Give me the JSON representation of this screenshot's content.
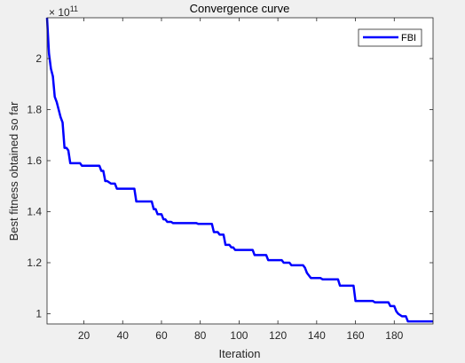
{
  "chart_data": {
    "type": "line",
    "title": "Convergence curve",
    "xlabel": "Iteration",
    "ylabel": "Best fitness obtained so far",
    "y_exponent_label": "× 10",
    "y_exponent": "11",
    "xlim": [
      1,
      200
    ],
    "ylim": [
      0.96,
      2.16
    ],
    "x_ticks": [
      20,
      40,
      60,
      80,
      100,
      120,
      140,
      160,
      180
    ],
    "y_ticks": [
      1,
      1.2,
      1.4,
      1.6,
      1.8,
      2
    ],
    "x_tick_labels": [
      "20",
      "40",
      "60",
      "80",
      "100",
      "120",
      "140",
      "160",
      "180"
    ],
    "y_tick_labels": [
      "1",
      "1.2",
      "1.4",
      "1.6",
      "1.8",
      "2"
    ],
    "grid": false,
    "legend_position": "top-right",
    "series": [
      {
        "name": "FBI",
        "color": "#0000ff",
        "points": [
          [
            1,
            2.16
          ],
          [
            2,
            2.02
          ],
          [
            3,
            1.96
          ],
          [
            4,
            1.93
          ],
          [
            5,
            1.85
          ],
          [
            6,
            1.83
          ],
          [
            7,
            1.8
          ],
          [
            8,
            1.77
          ],
          [
            9,
            1.75
          ],
          [
            10,
            1.65
          ],
          [
            11,
            1.65
          ],
          [
            12,
            1.64
          ],
          [
            13,
            1.59
          ],
          [
            18,
            1.59
          ],
          [
            19,
            1.58
          ],
          [
            28,
            1.58
          ],
          [
            29,
            1.56
          ],
          [
            30,
            1.56
          ],
          [
            31,
            1.52
          ],
          [
            32,
            1.52
          ],
          [
            34,
            1.51
          ],
          [
            36,
            1.51
          ],
          [
            37,
            1.49
          ],
          [
            46,
            1.49
          ],
          [
            47,
            1.44
          ],
          [
            55,
            1.44
          ],
          [
            56,
            1.41
          ],
          [
            57,
            1.41
          ],
          [
            58,
            1.39
          ],
          [
            60,
            1.39
          ],
          [
            61,
            1.37
          ],
          [
            62,
            1.37
          ],
          [
            63,
            1.36
          ],
          [
            65,
            1.36
          ],
          [
            66,
            1.355
          ],
          [
            78,
            1.355
          ],
          [
            79,
            1.352
          ],
          [
            86,
            1.352
          ],
          [
            87,
            1.32
          ],
          [
            89,
            1.32
          ],
          [
            90,
            1.31
          ],
          [
            92,
            1.31
          ],
          [
            93,
            1.27
          ],
          [
            95,
            1.27
          ],
          [
            96,
            1.26
          ],
          [
            97,
            1.26
          ],
          [
            98,
            1.25
          ],
          [
            107,
            1.25
          ],
          [
            108,
            1.23
          ],
          [
            114,
            1.23
          ],
          [
            115,
            1.21
          ],
          [
            122,
            1.21
          ],
          [
            123,
            1.2
          ],
          [
            126,
            1.2
          ],
          [
            127,
            1.19
          ],
          [
            133,
            1.19
          ],
          [
            134,
            1.18
          ],
          [
            135,
            1.16
          ],
          [
            136,
            1.15
          ],
          [
            137,
            1.14
          ],
          [
            142,
            1.14
          ],
          [
            143,
            1.135
          ],
          [
            151,
            1.135
          ],
          [
            152,
            1.11
          ],
          [
            159,
            1.11
          ],
          [
            160,
            1.05
          ],
          [
            169,
            1.05
          ],
          [
            170,
            1.045
          ],
          [
            177,
            1.045
          ],
          [
            178,
            1.03
          ],
          [
            180,
            1.03
          ],
          [
            181,
            1.01
          ],
          [
            182,
            1.0
          ],
          [
            184,
            0.99
          ],
          [
            186,
            0.99
          ],
          [
            187,
            0.97
          ],
          [
            200,
            0.97
          ]
        ]
      }
    ]
  }
}
